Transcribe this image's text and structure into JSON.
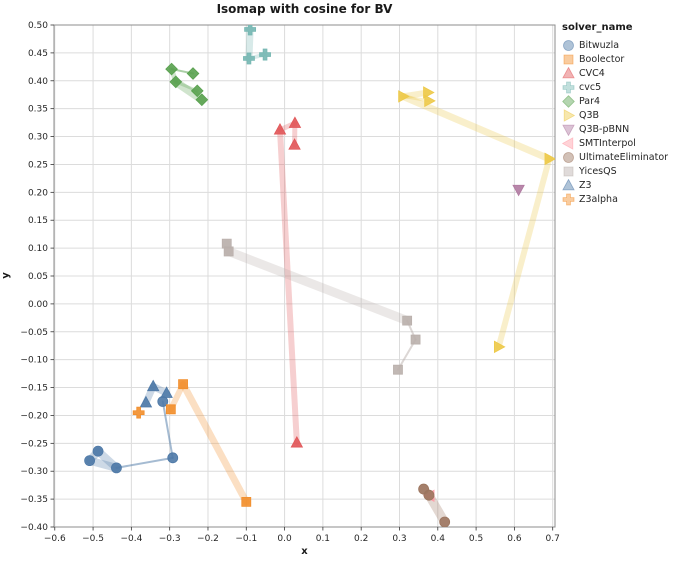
{
  "chart_data": {
    "type": "scatter",
    "title": "Isomap with cosine for BV",
    "xlabel": "x",
    "ylabel": "y",
    "legend_title": "solver_name",
    "legend_position": "right",
    "grid": true,
    "xlim": [
      -0.602,
      0.706
    ],
    "ylim": [
      -0.4,
      0.5
    ],
    "xticks": [
      -0.6,
      -0.5,
      -0.4,
      -0.3,
      -0.2,
      -0.1,
      0.0,
      0.1,
      0.2,
      0.3,
      0.4,
      0.5,
      0.6,
      0.7
    ],
    "yticks": [
      -0.4,
      -0.35,
      -0.3,
      -0.25,
      -0.2,
      -0.15,
      -0.1,
      -0.05,
      0.0,
      0.05,
      0.1,
      0.15,
      0.2,
      0.25,
      0.3,
      0.35,
      0.4,
      0.45,
      0.5
    ],
    "series": [
      {
        "name": "Bitwuzla",
        "marker": "circle",
        "color": "#4e79a7",
        "points": [
          [
            -0.509,
            -0.281
          ],
          [
            -0.487,
            -0.264
          ],
          [
            -0.439,
            -0.294
          ],
          [
            -0.292,
            -0.276
          ],
          [
            -0.318,
            -0.175
          ]
        ],
        "links": [
          [
            0,
            1,
            8
          ],
          [
            0,
            2,
            8
          ],
          [
            1,
            2,
            8
          ],
          [
            2,
            3,
            2
          ],
          [
            3,
            4,
            2
          ]
        ]
      },
      {
        "name": "Boolector",
        "marker": "square",
        "color": "#f28e2b",
        "points": [
          [
            -0.265,
            -0.144
          ],
          [
            -0.297,
            -0.189
          ],
          [
            -0.1,
            -0.355
          ]
        ],
        "links": [
          [
            0,
            1,
            6
          ],
          [
            0,
            2,
            7
          ]
        ]
      },
      {
        "name": "CVC4",
        "marker": "triangle-up",
        "color": "#e15759",
        "points": [
          [
            -0.012,
            0.312
          ],
          [
            0.027,
            0.324
          ],
          [
            0.026,
            0.285
          ],
          [
            0.032,
            -0.249
          ]
        ],
        "links": [
          [
            0,
            1,
            5
          ],
          [
            1,
            2,
            5
          ],
          [
            0,
            3,
            6
          ]
        ]
      },
      {
        "name": "cvc5",
        "marker": "plus",
        "color": "#76b7b2",
        "points": [
          [
            -0.09,
            0.492
          ],
          [
            -0.093,
            0.44
          ],
          [
            -0.051,
            0.447
          ]
        ],
        "links": [
          [
            0,
            1,
            7
          ],
          [
            1,
            2,
            4
          ]
        ]
      },
      {
        "name": "Par4",
        "marker": "diamond",
        "color": "#59a14f",
        "points": [
          [
            -0.295,
            0.421
          ],
          [
            -0.239,
            0.413
          ],
          [
            -0.284,
            0.398
          ],
          [
            -0.228,
            0.382
          ],
          [
            -0.216,
            0.366
          ]
        ],
        "links": [
          [
            0,
            1,
            2
          ],
          [
            0,
            2,
            5
          ],
          [
            2,
            4,
            8
          ],
          [
            2,
            3,
            3
          ]
        ]
      },
      {
        "name": "Q3B",
        "marker": "triangle-right",
        "color": "#edc949",
        "points": [
          [
            0.309,
            0.372
          ],
          [
            0.374,
            0.379
          ],
          [
            0.377,
            0.364
          ],
          [
            0.691,
            0.26
          ],
          [
            0.559,
            -0.077
          ]
        ],
        "links": [
          [
            0,
            1,
            6
          ],
          [
            0,
            2,
            3
          ],
          [
            0,
            3,
            7
          ],
          [
            3,
            4,
            6
          ]
        ]
      },
      {
        "name": "Q3B-pBNN",
        "marker": "triangle-down",
        "color": "#b07aa1",
        "points": [
          [
            0.611,
            0.205
          ]
        ],
        "links": []
      },
      {
        "name": "SMTInterpol",
        "marker": "triangle-left",
        "color": "#ff9da7",
        "points": [
          [
            0.379,
            -0.344
          ]
        ],
        "links": []
      },
      {
        "name": "UltimateEliminator",
        "marker": "circle",
        "color": "#9c755f",
        "points": [
          [
            0.363,
            -0.332
          ],
          [
            0.377,
            -0.343
          ],
          [
            0.418,
            -0.391
          ]
        ],
        "links": [
          [
            0,
            1,
            9
          ],
          [
            1,
            2,
            9
          ]
        ]
      },
      {
        "name": "YicesQS",
        "marker": "square",
        "color": "#bab0ac",
        "points": [
          [
            -0.151,
            0.108
          ],
          [
            -0.146,
            0.094
          ],
          [
            0.32,
            -0.03
          ],
          [
            0.342,
            -0.064
          ],
          [
            0.296,
            -0.118
          ]
        ],
        "links": [
          [
            0,
            1,
            8
          ],
          [
            1,
            2,
            9
          ],
          [
            2,
            3,
            2
          ],
          [
            3,
            4,
            2
          ]
        ]
      },
      {
        "name": "Z3",
        "marker": "triangle-up",
        "color": "#4e79a7",
        "points": [
          [
            -0.343,
            -0.148
          ],
          [
            -0.308,
            -0.16
          ],
          [
            -0.362,
            -0.177
          ]
        ],
        "links": [
          [
            2,
            0,
            7
          ],
          [
            0,
            1,
            7
          ]
        ]
      },
      {
        "name": "Z3alpha",
        "marker": "plus",
        "color": "#f28e2b",
        "points": [
          [
            -0.381,
            -0.195
          ]
        ],
        "links": []
      }
    ]
  }
}
